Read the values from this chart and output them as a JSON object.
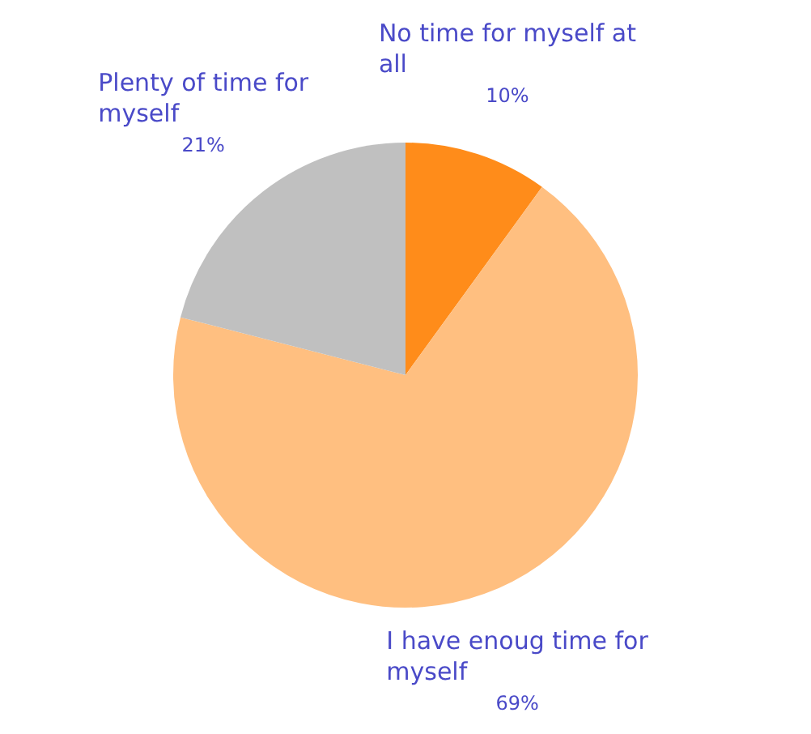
{
  "chart_data": {
    "type": "pie",
    "categories": [
      "No time for myself at all",
      "I have enoug time for myself",
      "Plenty of time for myself"
    ],
    "values": [
      10,
      69,
      21
    ],
    "value_labels": [
      "10%",
      "69%",
      "21%"
    ],
    "colors": [
      "#ff8c1a",
      "#ffbf80",
      "#c0c0c0"
    ],
    "legend": false
  }
}
